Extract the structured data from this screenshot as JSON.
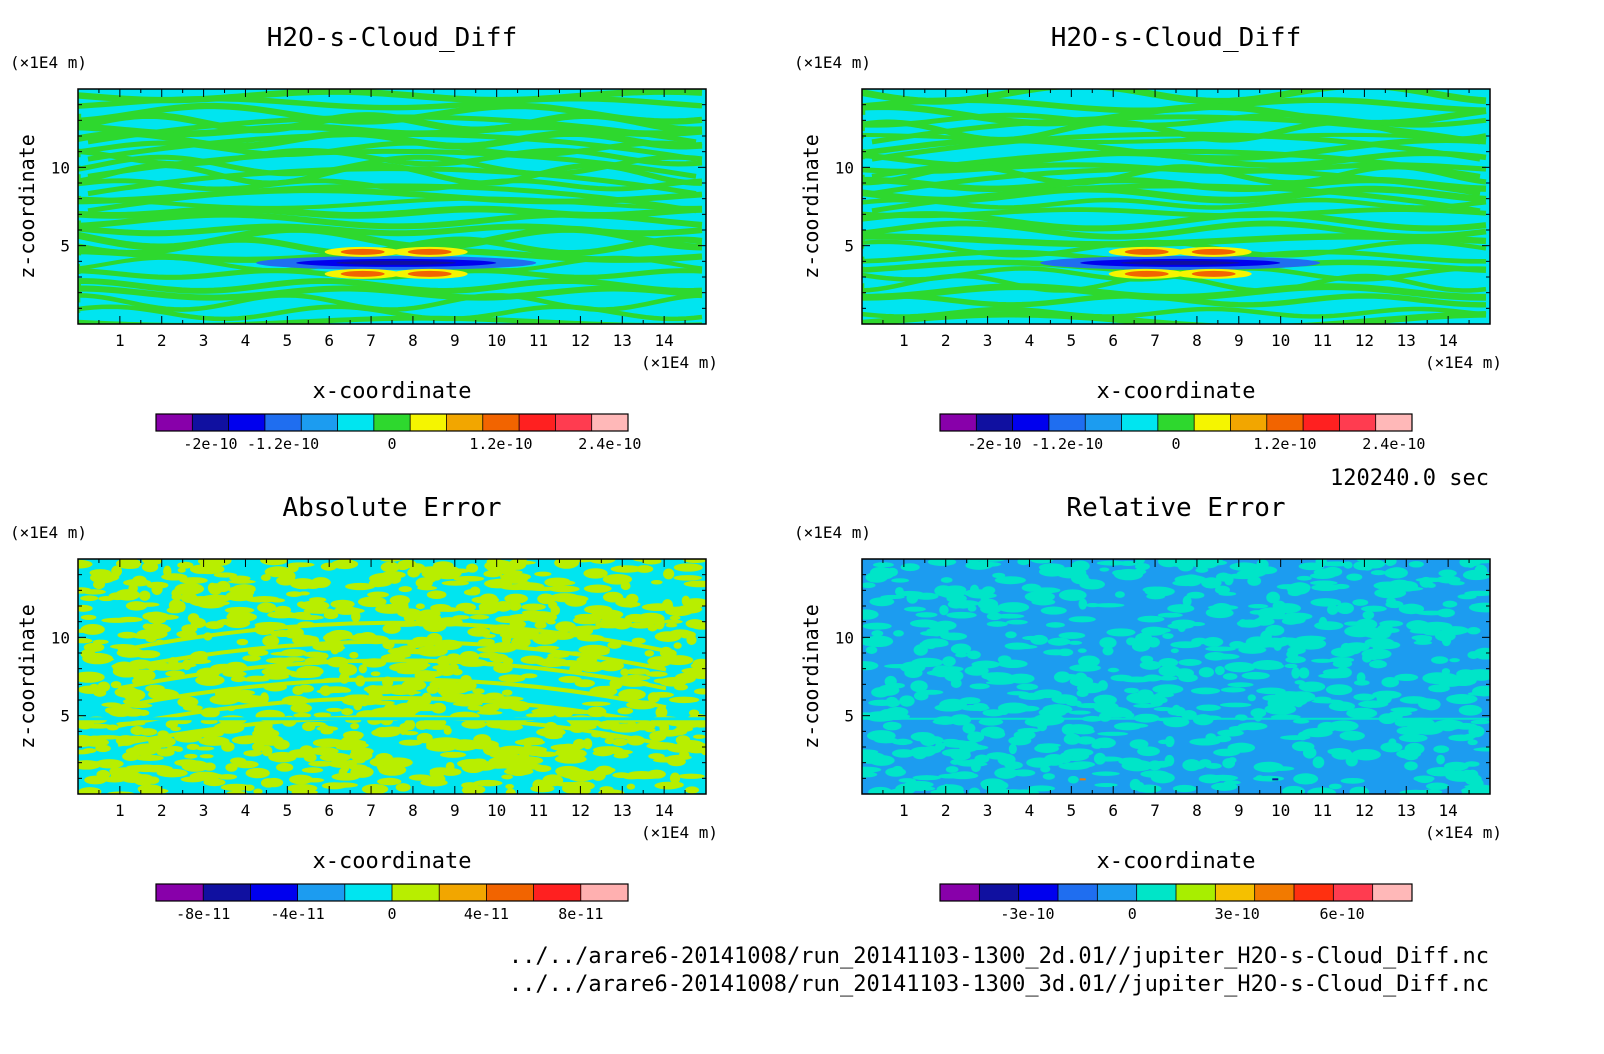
{
  "timestamp": "120240.0 sec",
  "files": [
    "../../arare6-20141008/run_20141103-1300_2d.01//jupiter_H2O-s-Cloud_Diff.nc",
    "../../arare6-20141008/run_20141103-1300_3d.01//jupiter_H2O-s-Cloud_Diff.nc"
  ],
  "chart_data": [
    {
      "type": "heatmap",
      "title": "H2O-s-Cloud_Diff",
      "xlabel": "x-coordinate",
      "ylabel": "z-coordinate",
      "x_unit": "(×1E4 m)",
      "y_unit": "(×1E4 m)",
      "xlim": [
        0,
        15
      ],
      "ylim": [
        0,
        15
      ],
      "xticks": [
        "1",
        "2",
        "3",
        "4",
        "5",
        "6",
        "7",
        "8",
        "9",
        "10",
        "11",
        "12",
        "13",
        "14"
      ],
      "yticks": [
        "5",
        "10"
      ],
      "colorbar": {
        "colors": [
          "#8800aa",
          "#1010a0",
          "#0000ee",
          "#1f6ef0",
          "#1c9cf0",
          "#00e5f0",
          "#2ed82e",
          "#f5f500",
          "#f2a600",
          "#f26400",
          "#ff2020",
          "#ff3c50",
          "#ffb8b8"
        ],
        "labels": [
          {
            "text": "-2e-10",
            "value": -2e-10
          },
          {
            "text": "-1.2e-10",
            "value": -1.2e-10
          },
          {
            "text": "0",
            "value": 0
          },
          {
            "text": "1.2e-10",
            "value": 1.2e-10
          },
          {
            "text": "2.4e-10",
            "value": 2.4e-10
          }
        ],
        "range": [
          -2.6e-10,
          2.6e-10
        ]
      },
      "pattern": "diff"
    },
    {
      "type": "heatmap",
      "title": "H2O-s-Cloud_Diff",
      "xlabel": "x-coordinate",
      "ylabel": "z-coordinate",
      "x_unit": "(×1E4 m)",
      "y_unit": "(×1E4 m)",
      "xlim": [
        0,
        15
      ],
      "ylim": [
        0,
        15
      ],
      "xticks": [
        "1",
        "2",
        "3",
        "4",
        "5",
        "6",
        "7",
        "8",
        "9",
        "10",
        "11",
        "12",
        "13",
        "14"
      ],
      "yticks": [
        "5",
        "10"
      ],
      "colorbar": {
        "colors": [
          "#8800aa",
          "#1010a0",
          "#0000ee",
          "#1f6ef0",
          "#1c9cf0",
          "#00e5f0",
          "#2ed82e",
          "#f5f500",
          "#f2a600",
          "#f26400",
          "#ff2020",
          "#ff3c50",
          "#ffb8b8"
        ],
        "labels": [
          {
            "text": "-2e-10",
            "value": -2e-10
          },
          {
            "text": "-1.2e-10",
            "value": -1.2e-10
          },
          {
            "text": "0",
            "value": 0
          },
          {
            "text": "1.2e-10",
            "value": 1.2e-10
          },
          {
            "text": "2.4e-10",
            "value": 2.4e-10
          }
        ],
        "range": [
          -2.6e-10,
          2.6e-10
        ]
      },
      "pattern": "diff"
    },
    {
      "type": "heatmap",
      "title": "Absolute Error",
      "xlabel": "x-coordinate",
      "ylabel": "z-coordinate",
      "x_unit": "(×1E4 m)",
      "y_unit": "(×1E4 m)",
      "xlim": [
        0,
        15
      ],
      "ylim": [
        0,
        15
      ],
      "xticks": [
        "1",
        "2",
        "3",
        "4",
        "5",
        "6",
        "7",
        "8",
        "9",
        "10",
        "11",
        "12",
        "13",
        "14"
      ],
      "yticks": [
        "5",
        "10"
      ],
      "colorbar": {
        "colors": [
          "#8800aa",
          "#1010a0",
          "#0000ee",
          "#1c9cf0",
          "#00e5f0",
          "#b8ee00",
          "#f2a600",
          "#f26400",
          "#ff2020",
          "#ffb0b0"
        ],
        "labels": [
          {
            "text": "-8e-11",
            "value": -8e-11
          },
          {
            "text": "-4e-11",
            "value": -4e-11
          },
          {
            "text": "0",
            "value": 0
          },
          {
            "text": "4e-11",
            "value": 4e-11
          },
          {
            "text": "8e-11",
            "value": 8e-11
          }
        ],
        "range": [
          -1e-10,
          1e-10
        ]
      },
      "pattern": "abs"
    },
    {
      "type": "heatmap",
      "title": "Relative Error",
      "xlabel": "x-coordinate",
      "ylabel": "z-coordinate",
      "x_unit": "(×1E4 m)",
      "y_unit": "(×1E4 m)",
      "xlim": [
        0,
        15
      ],
      "ylim": [
        0,
        15
      ],
      "xticks": [
        "1",
        "2",
        "3",
        "4",
        "5",
        "6",
        "7",
        "8",
        "9",
        "10",
        "11",
        "12",
        "13",
        "14"
      ],
      "yticks": [
        "5",
        "10"
      ],
      "colorbar": {
        "colors": [
          "#8800aa",
          "#1010a0",
          "#0000ee",
          "#1f6ef0",
          "#1c9cf0",
          "#00e5c8",
          "#a8ee00",
          "#f5c000",
          "#f27a00",
          "#ff3010",
          "#ff3c50",
          "#ffb8b8"
        ],
        "labels": [
          {
            "text": "-3e-10",
            "value": -3e-10
          },
          {
            "text": "0",
            "value": 0
          },
          {
            "text": "3e-10",
            "value": 3e-10
          },
          {
            "text": "6e-10",
            "value": 6e-10
          }
        ],
        "range": [
          -5.5e-10,
          8e-10
        ]
      },
      "pattern": "rel"
    }
  ]
}
